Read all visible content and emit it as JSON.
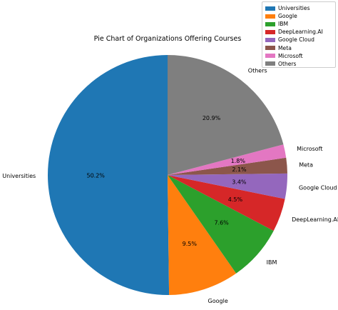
{
  "chart_data": {
    "type": "pie",
    "title": "Pie Chart of Organizations Offering Courses",
    "start_angle_deg": 90,
    "direction": "counterclockwise",
    "slices": [
      {
        "label": "Universities",
        "value": 50.2,
        "pct_label": "50.2%",
        "color": "#1f77b4"
      },
      {
        "label": "Google",
        "value": 9.5,
        "pct_label": "9.5%",
        "color": "#ff7f0e"
      },
      {
        "label": "IBM",
        "value": 7.6,
        "pct_label": "7.6%",
        "color": "#2ca02c"
      },
      {
        "label": "DeepLearning.AI",
        "value": 4.5,
        "pct_label": "4.5%",
        "color": "#d62728"
      },
      {
        "label": "Google Cloud",
        "value": 3.4,
        "pct_label": "3.4%",
        "color": "#9467bd"
      },
      {
        "label": "Meta",
        "value": 2.1,
        "pct_label": "2.1%",
        "color": "#8c564b"
      },
      {
        "label": "Microsoft",
        "value": 1.8,
        "pct_label": "1.8%",
        "color": "#e377c2"
      },
      {
        "label": "Others",
        "value": 20.9,
        "pct_label": "20.9%",
        "color": "#7f7f7f"
      }
    ],
    "legend": {
      "position": "upper-right",
      "entries": [
        "Universities",
        "Google",
        "IBM",
        "DeepLearning.AI",
        "Google Cloud",
        "Meta",
        "Microsoft",
        "Others"
      ]
    }
  }
}
